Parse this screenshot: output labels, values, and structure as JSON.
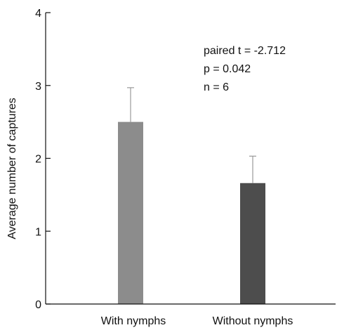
{
  "chart_data": {
    "type": "bar",
    "categories": [
      "With nymphs",
      "Without nymphs"
    ],
    "values": [
      2.5,
      1.66
    ],
    "error_upper": [
      2.97,
      2.03
    ],
    "colors": [
      "#8c8c8c",
      "#4d4d4d"
    ],
    "xlabel": "",
    "ylabel": "Average number of captures",
    "ylim": [
      0,
      4
    ],
    "yticks": [
      0,
      1,
      2,
      3,
      4
    ],
    "ytick_labels": [
      "0",
      "1",
      "2",
      "3",
      "4"
    ],
    "grid": false,
    "annotations": [
      "paired t = -2.712",
      "p = 0.042",
      "n = 6"
    ]
  }
}
